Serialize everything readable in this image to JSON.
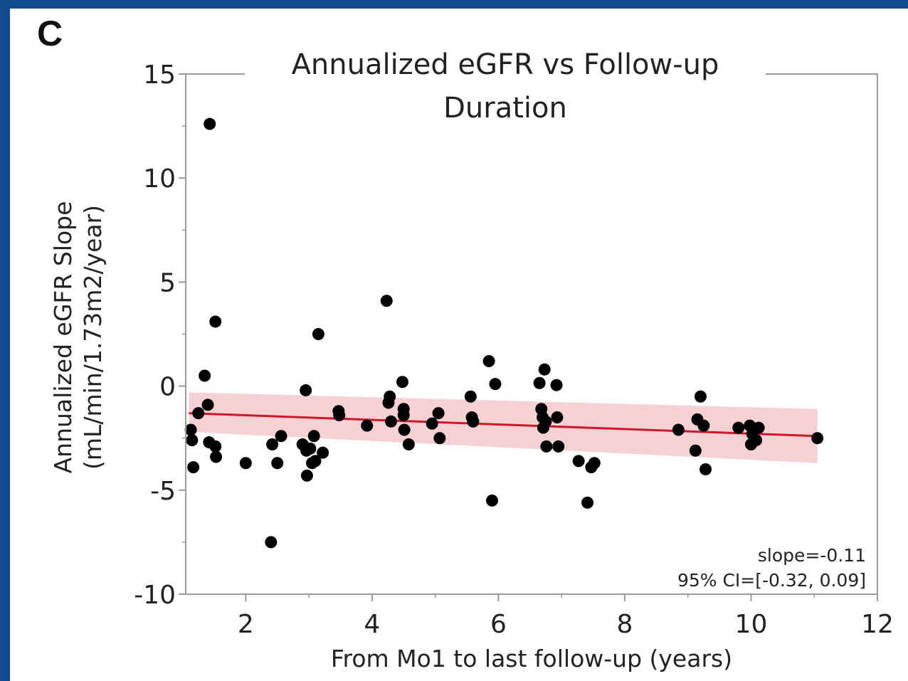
{
  "colors": {
    "frame": "#134b8f",
    "panel": "#ffffff",
    "points": "#000000",
    "fit_line": "#d0142a",
    "ci_band": "#f5c9cd",
    "axis": "#9a9a9a"
  },
  "chart_data": {
    "type": "scatter",
    "panel_label": "C",
    "title_lines": [
      "Annualized eGFR vs Follow-up",
      "Duration"
    ],
    "xlabel": "From Mo1 to last follow-up (years)",
    "ylabel_lines": [
      "Annualized eGFR Slope",
      "(mL/min/1.73m2/year)"
    ],
    "xlim": [
      1.05,
      12
    ],
    "ylim": [
      -10,
      15
    ],
    "xticks": [
      2,
      4,
      6,
      8,
      10,
      12
    ],
    "yticks": [
      15,
      10,
      5,
      0,
      -5,
      -10
    ],
    "xtick_labels": [
      "2",
      "4",
      "6",
      "8",
      "10",
      "12"
    ],
    "ytick_labels": [
      "15",
      "10",
      "5",
      "0",
      "-5",
      "-10"
    ],
    "grid": false,
    "points": [
      {
        "x": 1.13,
        "y": -2.1
      },
      {
        "x": 1.15,
        "y": -2.6
      },
      {
        "x": 1.17,
        "y": -3.9
      },
      {
        "x": 1.25,
        "y": -1.3
      },
      {
        "x": 1.35,
        "y": 0.5
      },
      {
        "x": 1.4,
        "y": -0.9
      },
      {
        "x": 1.42,
        "y": -2.7
      },
      {
        "x": 1.43,
        "y": 12.6
      },
      {
        "x": 1.52,
        "y": 3.1
      },
      {
        "x": 1.52,
        "y": -2.9
      },
      {
        "x": 1.53,
        "y": -3.4
      },
      {
        "x": 2.0,
        "y": -3.7
      },
      {
        "x": 2.4,
        "y": -7.5
      },
      {
        "x": 2.42,
        "y": -2.8
      },
      {
        "x": 2.5,
        "y": -3.7
      },
      {
        "x": 2.56,
        "y": -2.4
      },
      {
        "x": 2.9,
        "y": -2.8
      },
      {
        "x": 2.95,
        "y": -0.2
      },
      {
        "x": 2.96,
        "y": -3.1
      },
      {
        "x": 2.97,
        "y": -4.3
      },
      {
        "x": 3.02,
        "y": -3.0
      },
      {
        "x": 3.05,
        "y": -3.7
      },
      {
        "x": 3.08,
        "y": -2.4
      },
      {
        "x": 3.1,
        "y": -3.6
      },
      {
        "x": 3.15,
        "y": 2.5
      },
      {
        "x": 3.22,
        "y": -3.2
      },
      {
        "x": 3.47,
        "y": -1.2
      },
      {
        "x": 3.48,
        "y": -1.4
      },
      {
        "x": 3.92,
        "y": -1.9
      },
      {
        "x": 4.23,
        "y": 4.1
      },
      {
        "x": 4.26,
        "y": -0.8
      },
      {
        "x": 4.28,
        "y": -0.5
      },
      {
        "x": 4.3,
        "y": -1.7
      },
      {
        "x": 4.48,
        "y": 0.2
      },
      {
        "x": 4.5,
        "y": -1.1
      },
      {
        "x": 4.5,
        "y": -1.4
      },
      {
        "x": 4.51,
        "y": -2.1
      },
      {
        "x": 4.58,
        "y": -2.8
      },
      {
        "x": 4.95,
        "y": -1.8
      },
      {
        "x": 5.05,
        "y": -1.3
      },
      {
        "x": 5.07,
        "y": -2.5
      },
      {
        "x": 5.56,
        "y": -0.5
      },
      {
        "x": 5.58,
        "y": -1.5
      },
      {
        "x": 5.6,
        "y": -1.7
      },
      {
        "x": 5.85,
        "y": 1.2
      },
      {
        "x": 5.9,
        "y": -5.5
      },
      {
        "x": 5.95,
        "y": 0.1
      },
      {
        "x": 6.65,
        "y": 0.15
      },
      {
        "x": 6.68,
        "y": -1.1
      },
      {
        "x": 6.7,
        "y": -1.5
      },
      {
        "x": 6.71,
        "y": -2.0
      },
      {
        "x": 6.73,
        "y": 0.8
      },
      {
        "x": 6.75,
        "y": -1.7
      },
      {
        "x": 6.76,
        "y": -2.9
      },
      {
        "x": 6.92,
        "y": 0.05
      },
      {
        "x": 6.93,
        "y": -1.5
      },
      {
        "x": 6.95,
        "y": -2.9
      },
      {
        "x": 7.27,
        "y": -3.6
      },
      {
        "x": 7.41,
        "y": -5.6
      },
      {
        "x": 7.47,
        "y": -3.9
      },
      {
        "x": 7.52,
        "y": -3.7
      },
      {
        "x": 8.85,
        "y": -2.1
      },
      {
        "x": 9.12,
        "y": -3.1
      },
      {
        "x": 9.15,
        "y": -1.6
      },
      {
        "x": 9.2,
        "y": -0.5
      },
      {
        "x": 9.25,
        "y": -1.9
      },
      {
        "x": 9.28,
        "y": -4.0
      },
      {
        "x": 9.8,
        "y": -2.0
      },
      {
        "x": 9.98,
        "y": -1.9
      },
      {
        "x": 10.0,
        "y": -2.8
      },
      {
        "x": 10.02,
        "y": -2.3
      },
      {
        "x": 10.08,
        "y": -2.6
      },
      {
        "x": 10.12,
        "y": -2.0
      },
      {
        "x": 11.05,
        "y": -2.5
      }
    ],
    "fit_line": {
      "x": [
        1.1,
        11.05
      ],
      "y": [
        -1.3,
        -2.4
      ],
      "ci_lower": [
        -2.2,
        -3.7
      ],
      "ci_upper": [
        -0.3,
        -1.1
      ]
    },
    "annotations": [
      "slope=-0.11",
      "95% CI=[-0.32, 0.09]"
    ]
  }
}
